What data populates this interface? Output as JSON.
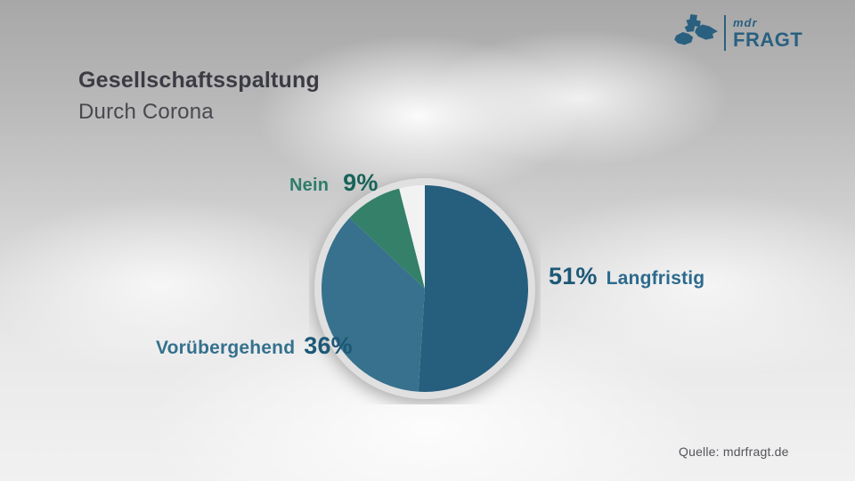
{
  "header": {
    "title": "Gesellschaftsspaltung",
    "subtitle": "Durch Corona"
  },
  "logo": {
    "brand_script": "mdr",
    "brand_name": "FRAGT",
    "color": "#2A607F"
  },
  "source_note": "Quelle: mdrfragt.de",
  "chart_data": {
    "type": "pie",
    "title": "Gesellschaftsspaltung durch Corona",
    "unit": "percent",
    "start_angle_deg": 0,
    "direction": "clockwise",
    "legend_position": "around-pie",
    "slices": [
      {
        "label": "Langfristig",
        "value": 51,
        "value_text": "51%",
        "color": "#265E7D",
        "value_color": "#1C5876",
        "label_color": "#2C6A8C"
      },
      {
        "label": "Vorübergehend",
        "value": 36,
        "value_text": "36%",
        "color": "#37718D",
        "value_color": "#1C5876",
        "label_color": "#35718E"
      },
      {
        "label": "Nein",
        "value": 9,
        "value_text": "9%",
        "color": "#348068",
        "value_color": "#186358",
        "label_color": "#2E7D68"
      },
      {
        "label": "",
        "value": 4,
        "value_text": "",
        "color": "#F2F2F3"
      }
    ],
    "ring_color": "#E0E0E1",
    "face_color": "#F2F2F3"
  }
}
